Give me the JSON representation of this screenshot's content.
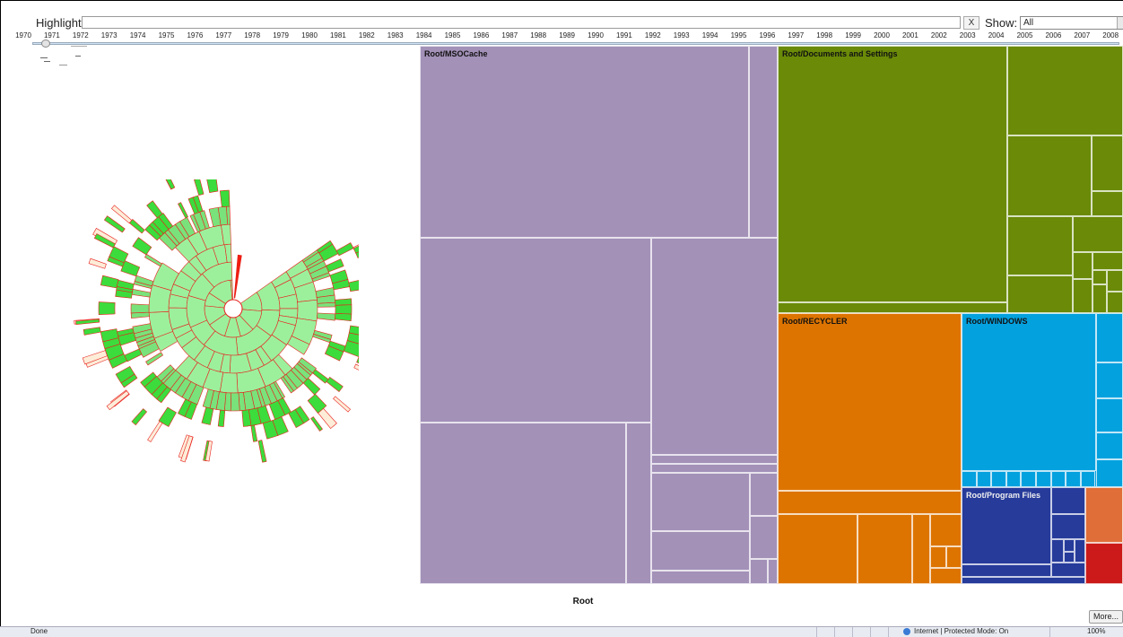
{
  "header": {
    "highlight_label": "Highlight:",
    "highlight_value": "",
    "clear_label": "X",
    "show_label": "Show:",
    "show_value": "All"
  },
  "timeline": {
    "years": [
      "1970",
      "1971",
      "1972",
      "1973",
      "1974",
      "1975",
      "1976",
      "1977",
      "1978",
      "1979",
      "1980",
      "1981",
      "1982",
      "1983",
      "1984",
      "1985",
      "1986",
      "1987",
      "1988",
      "1989",
      "1990",
      "1991",
      "1992",
      "1993",
      "1994",
      "1995",
      "1996",
      "1997",
      "1998",
      "1999",
      "2000",
      "2001",
      "2002",
      "2003",
      "2004",
      "2005",
      "2006",
      "2007",
      "2008"
    ],
    "slider_value": "1970"
  },
  "sunburst": {
    "ring_color": "#9cf09c",
    "outer_color": "#3cdc3c",
    "stroke_color": "#e8201c"
  },
  "treemap": {
    "title": "Root",
    "sections": [
      {
        "label": "Root/MSOCache",
        "color": "#a391b8"
      },
      {
        "label": "Root/Documents and Settings",
        "color": "#6a8a08"
      },
      {
        "label": "Root/RECYCLER",
        "color": "#dd7400"
      },
      {
        "label": "Root/WINDOWS",
        "color": "#04a1df"
      },
      {
        "label": "Root/Program Files",
        "color": "#263b9a"
      }
    ],
    "extra_colors": [
      "#e06e38",
      "#cc1a1a"
    ]
  },
  "more_label": "More...",
  "status": {
    "text": "Done",
    "zone": "Internet | Protected Mode: On",
    "zoom": "100%"
  }
}
